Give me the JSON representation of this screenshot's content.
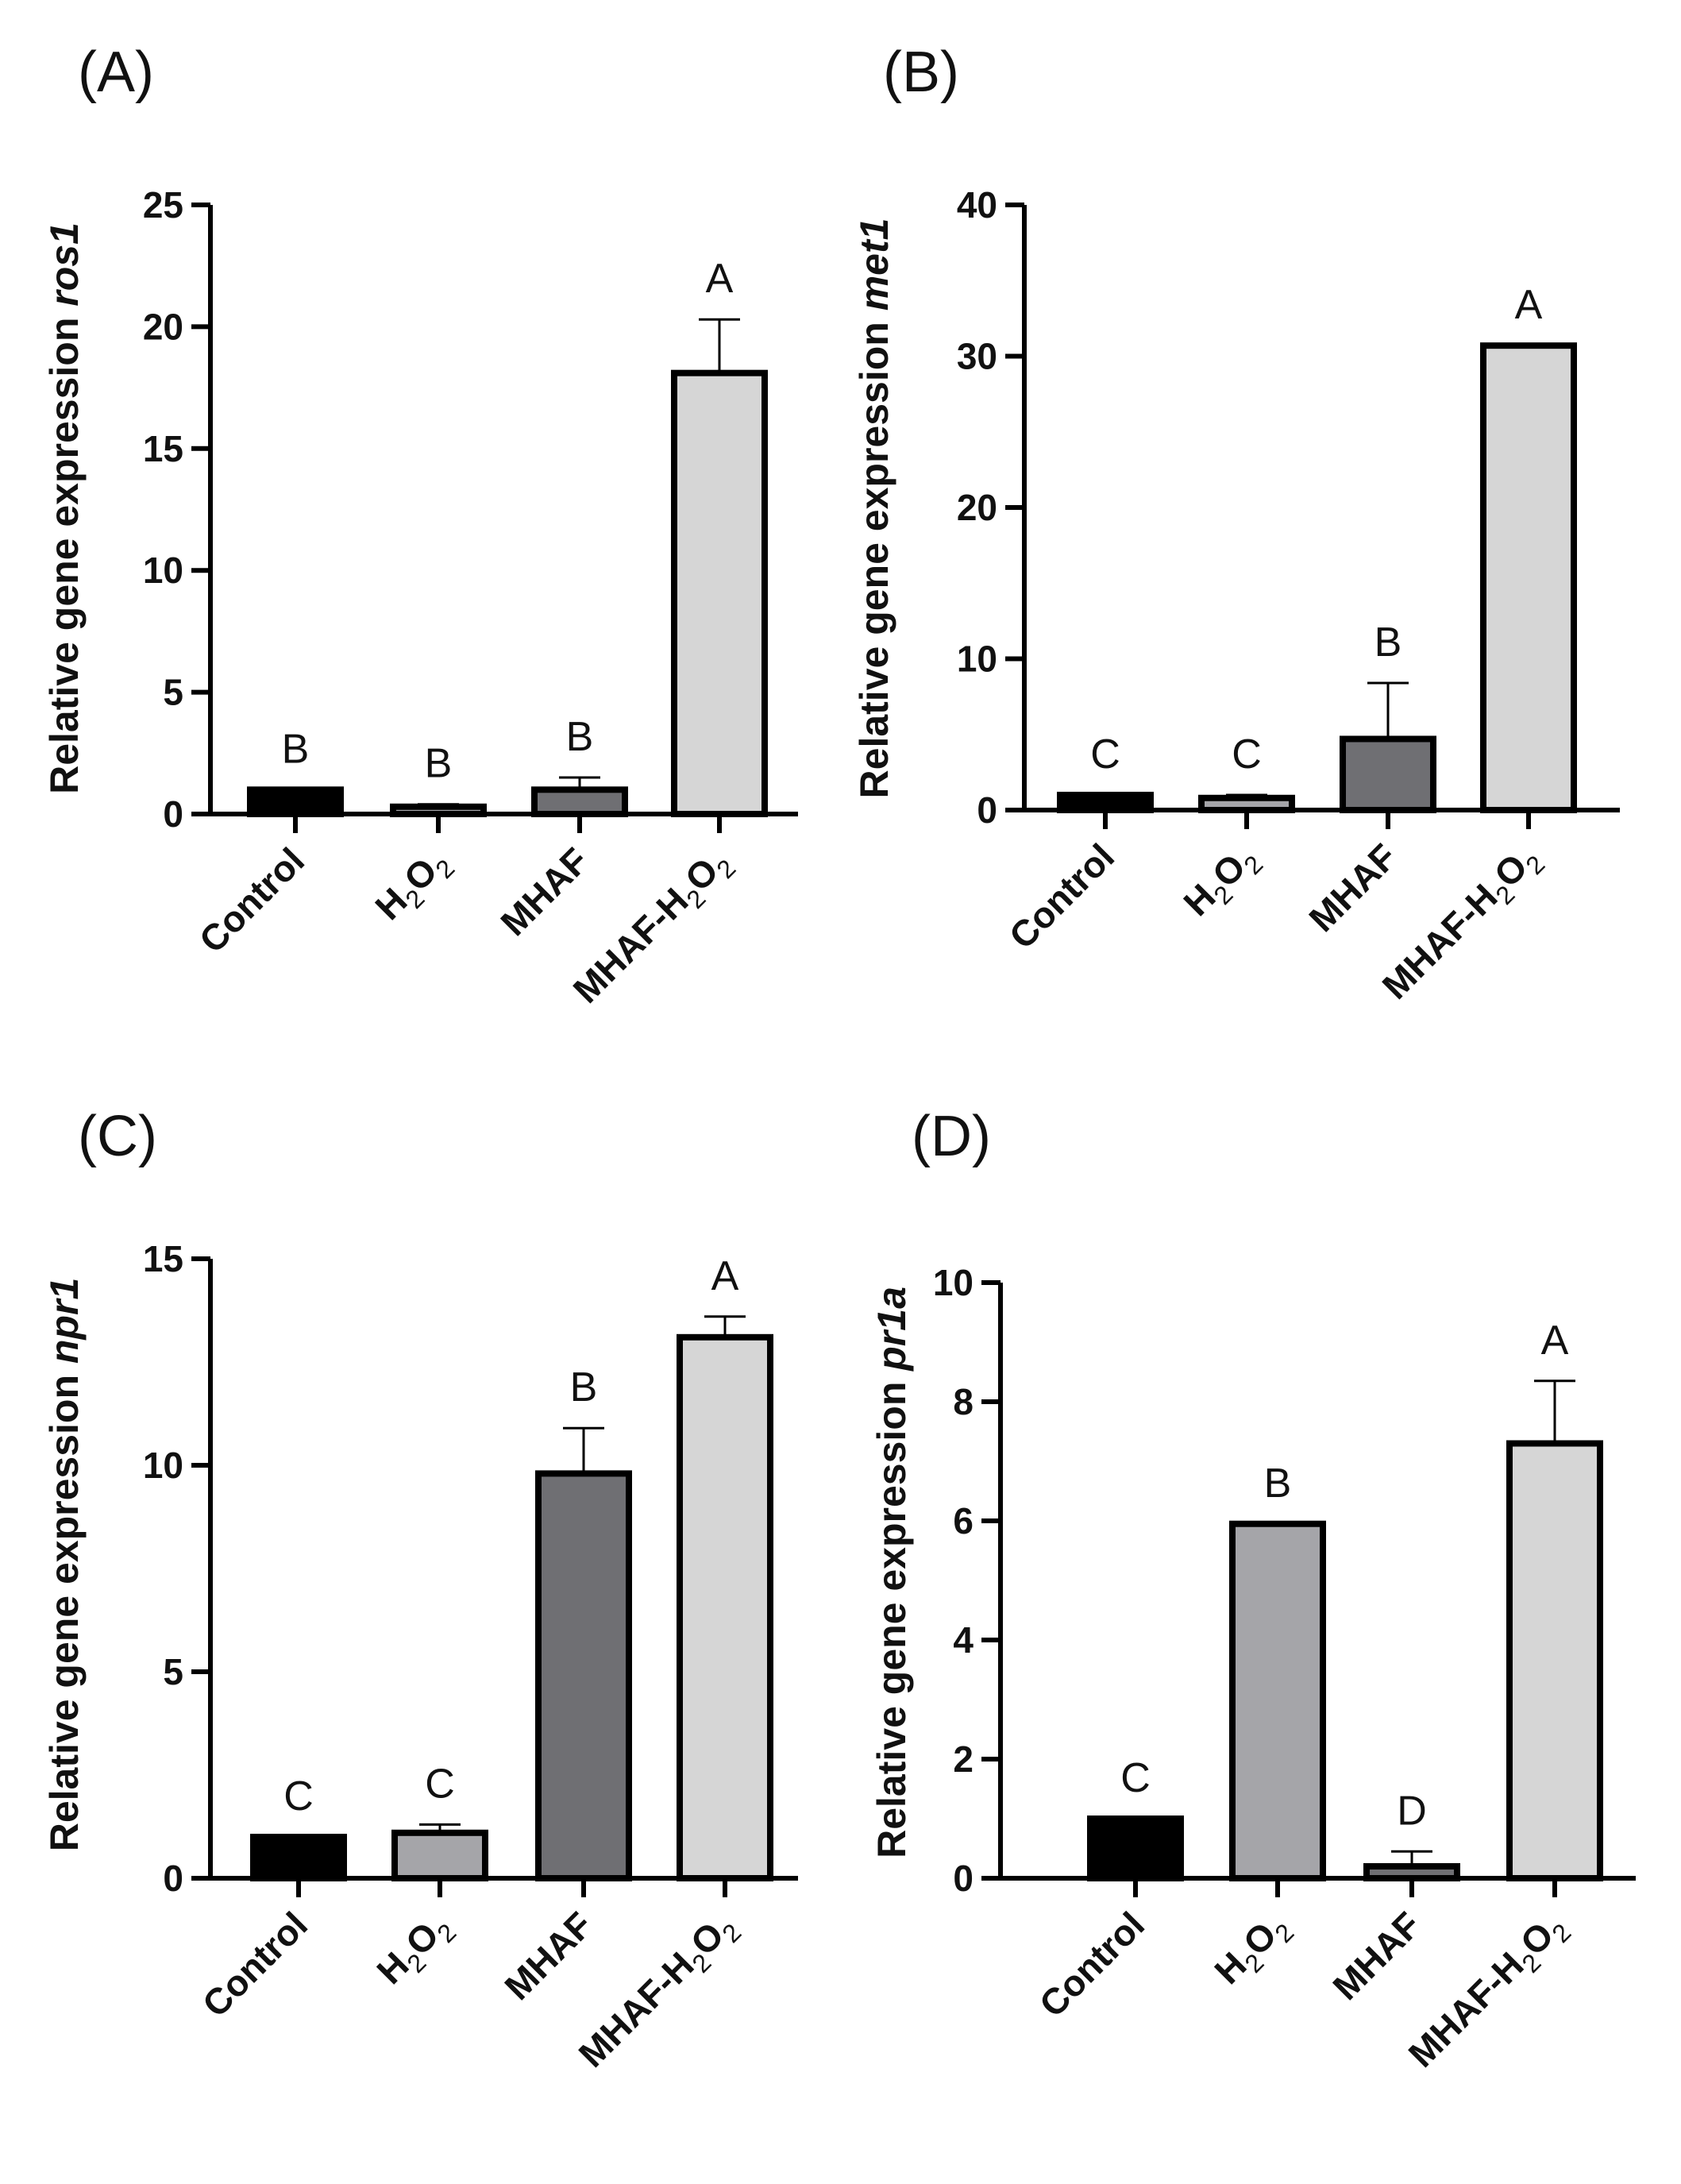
{
  "chart_data": [
    {
      "type": "bar",
      "panel": "(A)",
      "ylabel_prefix": "Relative gene expression ",
      "gene": "ros1",
      "ylim": [
        0,
        25
      ],
      "yticks": [
        0,
        5,
        10,
        15,
        20,
        25
      ],
      "categories": [
        {
          "main": "Control"
        },
        {
          "main": "H",
          "sub1": "2",
          "mid": "O",
          "sub2": "2"
        },
        {
          "main": "MHAF"
        },
        {
          "main": "MHAF-H",
          "sub1": "2",
          "mid": "O",
          "sub2": "2"
        }
      ],
      "values": [
        1.0,
        0.3,
        1.0,
        18.1
      ],
      "errors": [
        0,
        0.1,
        0.5,
        2.2
      ],
      "letters": [
        "B",
        "B",
        "B",
        "A"
      ],
      "colors": [
        "#000000",
        "#a5a5a9",
        "#6f6f73",
        "#d6d6d6"
      ]
    },
    {
      "type": "bar",
      "panel": "(B)",
      "ylabel_prefix": "Relative gene expression ",
      "gene": "met1",
      "ylim": [
        0,
        40
      ],
      "yticks": [
        0,
        10,
        20,
        30,
        40
      ],
      "categories": [
        {
          "main": "Control"
        },
        {
          "main": "H",
          "sub1": "2",
          "mid": "O",
          "sub2": "2"
        },
        {
          "main": "MHAF"
        },
        {
          "main": "MHAF-H",
          "sub1": "2",
          "mid": "O",
          "sub2": "2"
        }
      ],
      "values": [
        1.0,
        0.8,
        4.7,
        30.7
      ],
      "errors": [
        0,
        0.2,
        3.7,
        0
      ],
      "letters": [
        "C",
        "C",
        "B",
        "A"
      ],
      "colors": [
        "#000000",
        "#a5a5a9",
        "#6f6f73",
        "#d6d6d6"
      ]
    },
    {
      "type": "bar",
      "panel": "(C)",
      "ylabel_prefix": "Relative gene expression ",
      "gene": "npr1",
      "ylim": [
        0,
        15
      ],
      "yticks": [
        0,
        5,
        10,
        15
      ],
      "categories": [
        {
          "main": "Control"
        },
        {
          "main": "H",
          "sub1": "2",
          "mid": "O",
          "sub2": "2"
        },
        {
          "main": "MHAF"
        },
        {
          "main": "MHAF-H",
          "sub1": "2",
          "mid": "O",
          "sub2": "2"
        }
      ],
      "values": [
        1.0,
        1.1,
        9.8,
        13.1
      ],
      "errors": [
        0,
        0.2,
        1.1,
        0.5
      ],
      "letters": [
        "C",
        "C",
        "B",
        "A"
      ],
      "colors": [
        "#000000",
        "#a5a5a9",
        "#6f6f73",
        "#d6d6d6"
      ]
    },
    {
      "type": "bar",
      "panel": "(D)",
      "ylabel_prefix": "Relative gene expression ",
      "gene": "pr1a",
      "ylim": [
        0,
        10
      ],
      "yticks": [
        0,
        2,
        4,
        6,
        8,
        10
      ],
      "categories": [
        {
          "main": "Control"
        },
        {
          "main": "H",
          "sub1": "2",
          "mid": "O",
          "sub2": "2"
        },
        {
          "main": "MHAF"
        },
        {
          "main": "MHAF-H",
          "sub1": "2",
          "mid": "O",
          "sub2": "2"
        }
      ],
      "values": [
        1.0,
        5.95,
        0.2,
        7.3
      ],
      "errors": [
        0,
        0,
        0.25,
        1.05
      ],
      "letters": [
        "C",
        "B",
        "D",
        "A"
      ],
      "colors": [
        "#000000",
        "#a5a5a9",
        "#6f6f73",
        "#d6d6d6"
      ]
    }
  ]
}
